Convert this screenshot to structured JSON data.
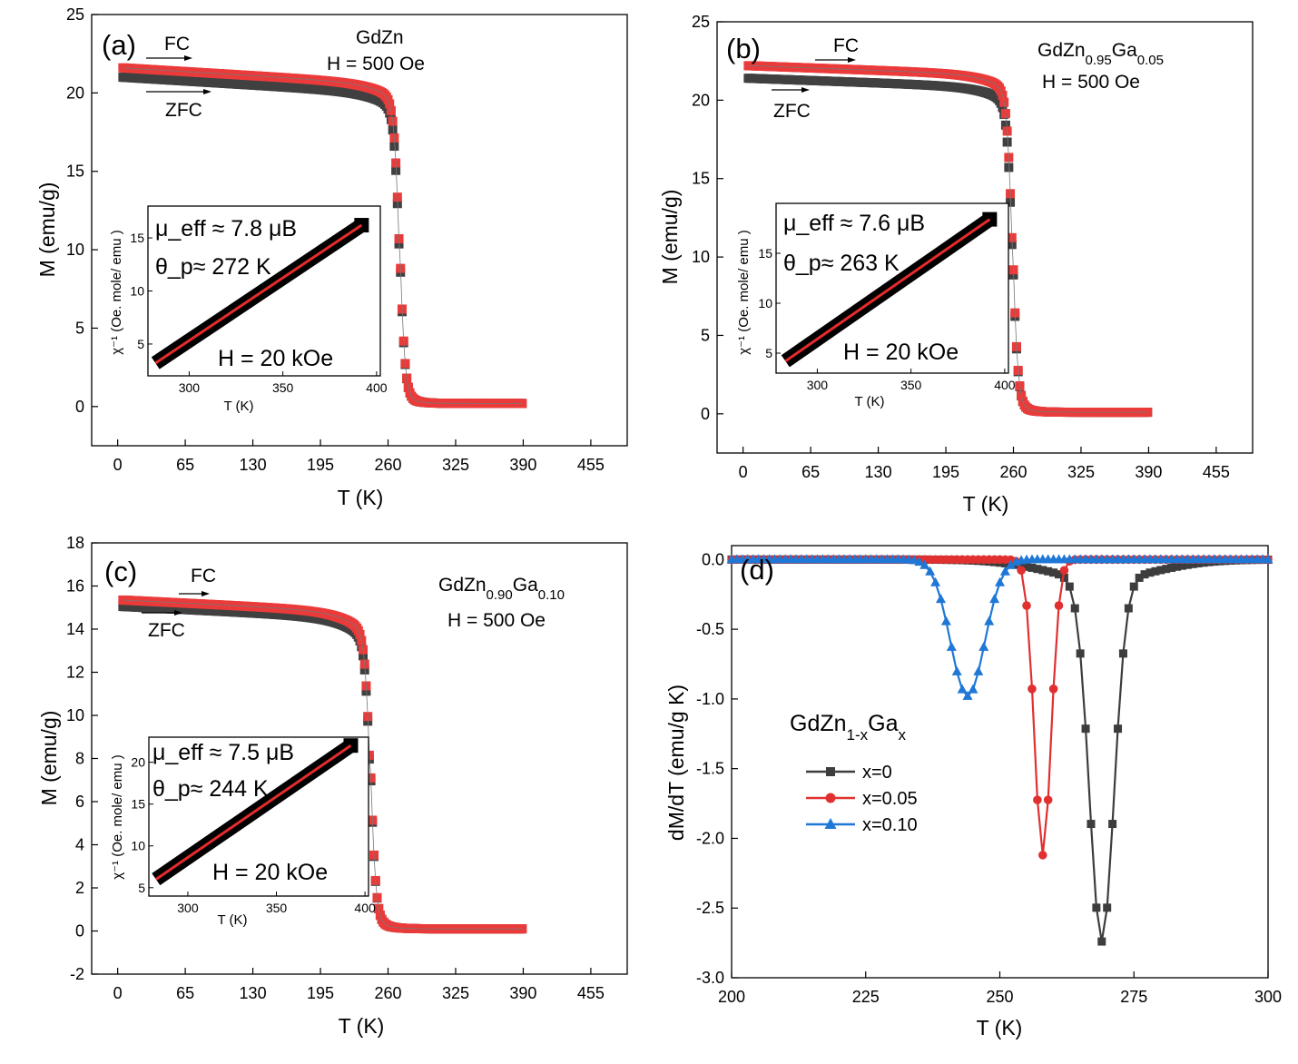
{
  "chart_data": [
    {
      "panel": "(a)",
      "type": "scatter",
      "title": "GdZn",
      "field": "H = 500 Oe",
      "xlabel": "T (K)",
      "ylabel": "M (emu/g)",
      "xlim": [
        -25,
        490
      ],
      "ylim": [
        -2.5,
        25
      ],
      "xticks": [
        0,
        65,
        130,
        195,
        260,
        325,
        390,
        455
      ],
      "yticks": [
        0,
        5,
        10,
        15,
        20,
        25
      ],
      "fc_label": "FC",
      "zfc_label": "ZFC",
      "tc": 271,
      "m_low_fc": 21.6,
      "m_low_zfc": 21.0,
      "m_high": 0.2,
      "t_start": 5,
      "t_end": 390,
      "inset": {
        "xlabel": "T (K)",
        "ylabel": "χ⁻¹ (Oe. mole/ emu )",
        "xticks": [
          300,
          350,
          400
        ],
        "yticks": [
          5,
          10,
          15
        ],
        "xlim": [
          278,
          402
        ],
        "ylim": [
          2,
          18
        ],
        "line": [
          [
            282,
            3.2
          ],
          [
            392,
            16.2
          ]
        ],
        "mu_eff": "μ_eff ≈ 7.8 μB",
        "theta_p": "θ_p≈ 272 K",
        "field": "H = 20 kOe"
      }
    },
    {
      "panel": "(b)",
      "type": "scatter",
      "title": "GdZn0.95Ga0.05",
      "field": "H = 500 Oe",
      "xlabel": "T (K)",
      "ylabel": "M (emu/g)",
      "xlim": [
        -25,
        490
      ],
      "ylim": [
        -2.5,
        25
      ],
      "xticks": [
        0,
        65,
        130,
        195,
        260,
        325,
        390,
        455
      ],
      "yticks": [
        0,
        5,
        10,
        15,
        20,
        25
      ],
      "fc_label": "FC",
      "zfc_label": "ZFC",
      "tc": 259,
      "m_low_fc": 22.2,
      "m_low_zfc": 21.4,
      "m_high": 0.1,
      "t_start": 5,
      "t_end": 390,
      "inset": {
        "xlabel": "T (K)",
        "ylabel": "χ⁻¹ (Oe. mole/ emu )",
        "xticks": [
          300,
          350,
          400
        ],
        "yticks": [
          5,
          10,
          15
        ],
        "xlim": [
          278,
          402
        ],
        "ylim": [
          3,
          20
        ],
        "line": [
          [
            283,
            4.2
          ],
          [
            392,
            18.4
          ]
        ],
        "mu_eff": "μ_eff ≈ 7.6 μB",
        "theta_p": "θ_p≈ 263 K",
        "field": "H = 20 kOe"
      }
    },
    {
      "panel": "(c)",
      "type": "scatter",
      "title": "GdZn0.90Ga0.10",
      "field": "H = 500 Oe",
      "xlabel": "T (K)",
      "ylabel": "M (emu/g)",
      "xlim": [
        -25,
        490
      ],
      "ylim": [
        -2,
        18
      ],
      "xticks": [
        0,
        65,
        130,
        195,
        260,
        325,
        390,
        455
      ],
      "yticks": [
        -2,
        0,
        2,
        4,
        6,
        8,
        10,
        12,
        14,
        16,
        18
      ],
      "fc_label": "FC",
      "zfc_label": "ZFC",
      "tc": 243,
      "m_low_fc": 15.35,
      "m_low_zfc": 15.05,
      "m_high": 0.1,
      "t_start": 5,
      "t_end": 390,
      "inset": {
        "xlabel": "T (K)",
        "ylabel": "χ⁻¹ (Oe. mole/ emu )",
        "xticks": [
          300,
          350,
          400
        ],
        "yticks": [
          5,
          10,
          15,
          20
        ],
        "xlim": [
          278,
          402
        ],
        "ylim": [
          4,
          23
        ],
        "line": [
          [
            282,
            6.0
          ],
          [
            392,
            22.0
          ]
        ],
        "mu_eff": "μ_eff ≈ 7.5 μB",
        "theta_p": "θ_p≈ 244 K",
        "field": "H = 20 kOe"
      }
    },
    {
      "panel": "(d)",
      "type": "line",
      "xlabel": "T (K)",
      "ylabel": "dM/dT (emu/g K)",
      "xlim": [
        200,
        300
      ],
      "ylim": [
        -3.0,
        0.1
      ],
      "xticks": [
        200,
        225,
        250,
        275,
        300
      ],
      "yticks": [
        0.0,
        -0.5,
        -1.0,
        -1.5,
        -2.0,
        -2.5,
        -3.0
      ],
      "legend_title": "GdZn1-xGax",
      "legend_position": "center-left",
      "series": [
        {
          "name": "x=0",
          "color": "#3d3d3d",
          "marker": "square",
          "center": 269,
          "min": -2.6,
          "width": 3.2,
          "step": 1.0,
          "tail": 0.14,
          "tail_width": 14
        },
        {
          "name": "x=0.05",
          "color": "#e03030",
          "marker": "circle",
          "center": 258,
          "min": -2.12,
          "width": 2.2,
          "step": 1.0,
          "tail": 0.0,
          "tail_width": 10
        },
        {
          "name": "x=0.10",
          "color": "#1f77d6",
          "marker": "triangle",
          "center": 244,
          "min": -0.98,
          "width": 4.5,
          "step": 1.0,
          "tail": 0.0,
          "tail_width": 10
        }
      ]
    }
  ]
}
